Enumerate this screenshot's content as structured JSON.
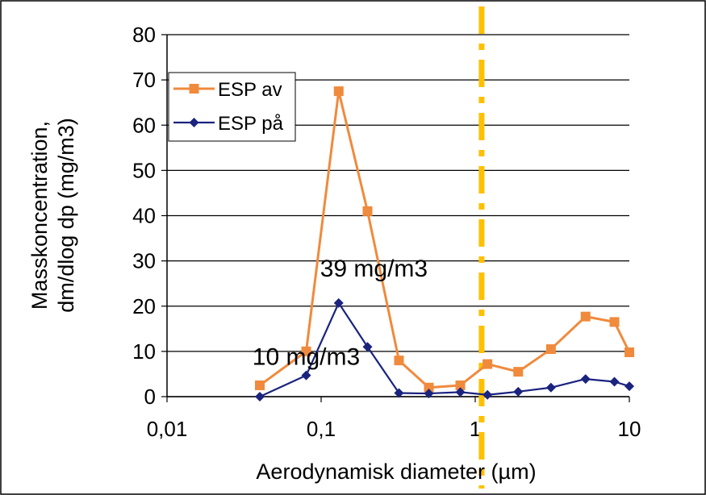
{
  "chart_data": {
    "type": "line",
    "xlabel": "Aerodynamisk diameter (µm)",
    "ylabel_lines": [
      "Masskoncentration,",
      "dm/dlog dp  (mg/m3)"
    ],
    "x_scale": "log",
    "xlim": [
      0.01,
      10
    ],
    "ylim": [
      0,
      80
    ],
    "x_ticks": [
      0.01,
      0.1,
      1,
      10
    ],
    "x_tick_labels": [
      "0,01",
      "0,1",
      "1",
      "10"
    ],
    "y_ticks": [
      0,
      10,
      20,
      30,
      40,
      50,
      60,
      70,
      80
    ],
    "y_tick_labels": [
      "0",
      "10",
      "20",
      "30",
      "40",
      "50",
      "60",
      "70",
      "80"
    ],
    "grid": "horizontal",
    "legend_position": "upper-left",
    "reference_line": {
      "x": 1.1,
      "style": "dash-dot",
      "color": "#ffc000"
    },
    "series": [
      {
        "name": "ESP av",
        "color": "#f08a3c",
        "marker": "square",
        "x": [
          0.04,
          0.08,
          0.13,
          0.2,
          0.32,
          0.5,
          0.8,
          1.2,
          1.9,
          3.1,
          5.2,
          8.0,
          10.0
        ],
        "y": [
          2.5,
          10.0,
          67.5,
          41.0,
          8.0,
          2.0,
          2.5,
          7.2,
          5.5,
          10.5,
          17.7,
          16.5,
          9.8
        ]
      },
      {
        "name": "ESP på",
        "color": "#1a237e",
        "marker": "diamond",
        "x": [
          0.04,
          0.08,
          0.13,
          0.2,
          0.32,
          0.5,
          0.8,
          1.2,
          1.9,
          3.1,
          5.2,
          8.0,
          10.0
        ],
        "y": [
          0.0,
          4.7,
          20.7,
          11.0,
          0.8,
          0.7,
          1.0,
          0.4,
          1.1,
          2.0,
          3.9,
          3.3,
          2.3
        ]
      }
    ],
    "annotations": [
      {
        "text": "39 mg/m3",
        "x": 0.22,
        "y": 28.5
      },
      {
        "text": "10 mg/m3",
        "x": 0.08,
        "y": 9.0
      }
    ]
  }
}
